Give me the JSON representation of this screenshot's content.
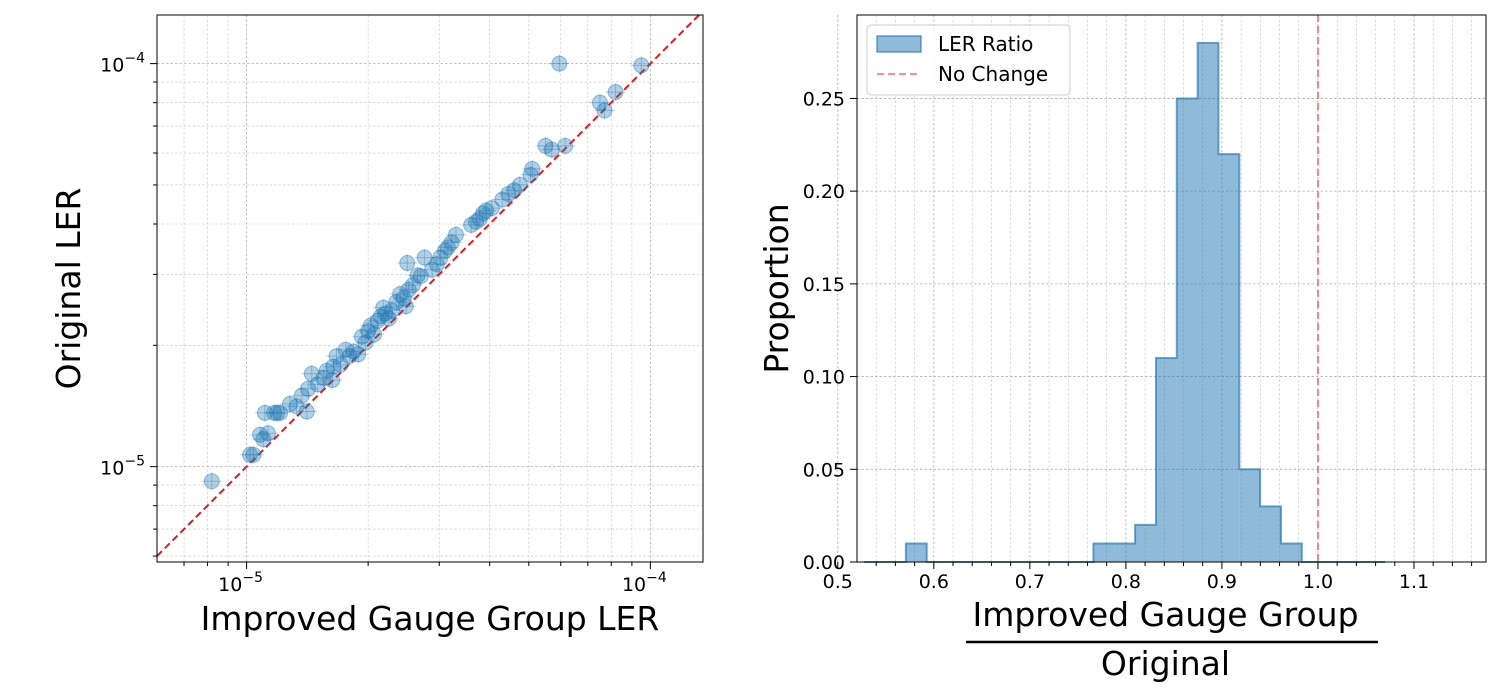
{
  "chart_data": [
    {
      "type": "scatter",
      "xscale": "log",
      "yscale": "log",
      "xlabel": "Improved Gauge Group LER",
      "ylabel": "Original LER",
      "xlim": [
        6e-06,
        0.000135
      ],
      "ylim": [
        5.8e-06,
        0.000132
      ],
      "xticks": [
        {
          "value": 1e-05,
          "base": "10",
          "exp": "−5"
        },
        {
          "value": 0.0001,
          "base": "10",
          "exp": "−4"
        }
      ],
      "yticks": [
        {
          "value": 1e-05,
          "base": "10",
          "exp": "−5"
        },
        {
          "value": 0.0001,
          "base": "10",
          "exp": "−4"
        }
      ],
      "reference_line": {
        "label": "y = x",
        "color": "#e41a1c",
        "style": "dashed"
      },
      "marker_color": "#1f77b4",
      "grid": true,
      "points": [
        [
          8.2e-06,
          9.2e-06
        ],
        [
          1.02e-05,
          1.07e-05
        ],
        [
          1.04e-05,
          1.07e-05
        ],
        [
          1.08e-05,
          1.2e-05
        ],
        [
          1.1e-05,
          1.17e-05
        ],
        [
          1.13e-05,
          1.21e-05
        ],
        [
          1.11e-05,
          1.36e-05
        ],
        [
          1.17e-05,
          1.36e-05
        ],
        [
          1.19e-05,
          1.36e-05
        ],
        [
          1.21e-05,
          1.36e-05
        ],
        [
          1.28e-05,
          1.43e-05
        ],
        [
          1.33e-05,
          1.41e-05
        ],
        [
          1.41e-05,
          1.37e-05
        ],
        [
          1.37e-05,
          1.5e-05
        ],
        [
          1.42e-05,
          1.56e-05
        ],
        [
          1.45e-05,
          1.7e-05
        ],
        [
          1.5e-05,
          1.6e-05
        ],
        [
          1.55e-05,
          1.66e-05
        ],
        [
          1.58e-05,
          1.73e-05
        ],
        [
          1.63e-05,
          1.64e-05
        ],
        [
          1.64e-05,
          1.77e-05
        ],
        [
          1.67e-05,
          1.88e-05
        ],
        [
          1.71e-05,
          1.79e-05
        ],
        [
          1.76e-05,
          1.95e-05
        ],
        [
          1.8e-05,
          1.88e-05
        ],
        [
          1.84e-05,
          1.93e-05
        ],
        [
          1.89e-05,
          1.9e-05
        ],
        [
          1.93e-05,
          2.1e-05
        ],
        [
          1.97e-05,
          2.03e-05
        ],
        [
          2e-05,
          2.17e-05
        ],
        [
          2.03e-05,
          2.24e-05
        ],
        [
          2.07e-05,
          2.13e-05
        ],
        [
          2.11e-05,
          2.3e-05
        ],
        [
          2.15e-05,
          2.36e-05
        ],
        [
          2.18e-05,
          2.48e-05
        ],
        [
          2.21e-05,
          2.4e-05
        ],
        [
          2.25e-05,
          2.33e-05
        ],
        [
          2.29e-05,
          2.44e-05
        ],
        [
          2.35e-05,
          2.56e-05
        ],
        [
          2.4e-05,
          2.68e-05
        ],
        [
          2.45e-05,
          2.62e-05
        ],
        [
          2.48e-05,
          2.5e-05
        ],
        [
          2.5e-05,
          3.2e-05
        ],
        [
          2.52e-05,
          2.75e-05
        ],
        [
          2.58e-05,
          2.82e-05
        ],
        [
          2.65e-05,
          2.98e-05
        ],
        [
          2.7e-05,
          2.97e-05
        ],
        [
          2.76e-05,
          3.3e-05
        ],
        [
          2.88e-05,
          3.08e-05
        ],
        [
          2.96e-05,
          3.18e-05
        ],
        [
          3.02e-05,
          3.3e-05
        ],
        [
          3.1e-05,
          3.43e-05
        ],
        [
          3.15e-05,
          3.5e-05
        ],
        [
          3.22e-05,
          3.6e-05
        ],
        [
          3.3e-05,
          3.76e-05
        ],
        [
          3.6e-05,
          3.98e-05
        ],
        [
          3.7e-05,
          4.05e-05
        ],
        [
          3.78e-05,
          4.12e-05
        ],
        [
          3.85e-05,
          4.25e-05
        ],
        [
          3.92e-05,
          4.32e-05
        ],
        [
          4.05e-05,
          4.38e-05
        ],
        [
          4.3e-05,
          4.6e-05
        ],
        [
          4.45e-05,
          4.75e-05
        ],
        [
          4.6e-05,
          4.85e-05
        ],
        [
          4.75e-05,
          5e-05
        ],
        [
          5.05e-05,
          5.3e-05
        ],
        [
          5.1e-05,
          5.48e-05
        ],
        [
          5.5e-05,
          6.25e-05
        ],
        [
          5.7e-05,
          6.12e-05
        ],
        [
          5.95e-05,
          0.0001
        ],
        [
          6.15e-05,
          6.25e-05
        ],
        [
          7.5e-05,
          8e-05
        ],
        [
          7.7e-05,
          7.65e-05
        ],
        [
          8.2e-05,
          8.5e-05
        ],
        [
          9.5e-05,
          9.9e-05
        ]
      ]
    },
    {
      "type": "histogram",
      "xlabel_numerator": "Improved Gauge Group",
      "xlabel_denominator": "Original",
      "ylabel": "Proportion",
      "xlim": [
        0.52,
        1.175
      ],
      "ylim": [
        0,
        0.295
      ],
      "xticks": [
        "0.5",
        "0.6",
        "0.7",
        "0.8",
        "0.9",
        "1.0",
        "1.1"
      ],
      "yticks": [
        "0.00",
        "0.05",
        "0.10",
        "0.15",
        "0.20",
        "0.25"
      ],
      "bin_width": 0.0217,
      "bin_start": 0.5275,
      "values": [
        0.0,
        0.0,
        0.01,
        0.0,
        0.0,
        0.0,
        0.0,
        0.0,
        0.0,
        0.0,
        0.0,
        0.01,
        0.01,
        0.02,
        0.11,
        0.25,
        0.28,
        0.22,
        0.05,
        0.03,
        0.01,
        0.0,
        0.0,
        0.0,
        0.0
      ],
      "series": [
        {
          "name": "LER Ratio",
          "color": "#1f77b4"
        }
      ],
      "reference_line": {
        "value": 1.0,
        "label": "No Change",
        "color": "#ff6666",
        "style": "dashed"
      },
      "legend_position": "top-left",
      "grid": true
    }
  ]
}
